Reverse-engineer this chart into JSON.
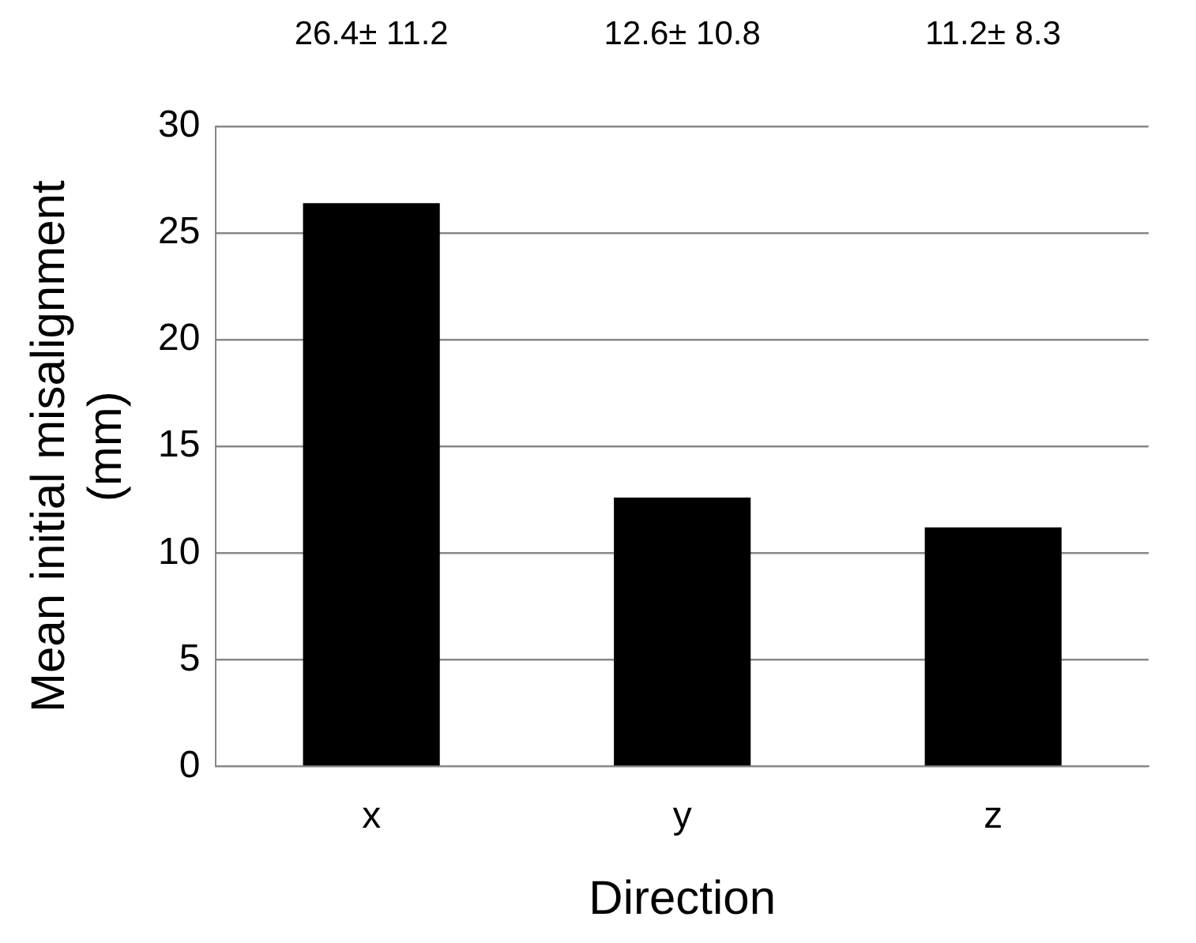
{
  "chart_data": {
    "type": "bar",
    "xlabel": "Direction",
    "ylabel": "Mean initial misalignment\n(mm)",
    "categories": [
      "x",
      "y",
      "z"
    ],
    "values": [
      26.4,
      12.6,
      11.2
    ],
    "color": "#000000",
    "value_labels": [
      "26.4± 11.2",
      "12.6± 10.8",
      "11.2± 8.3"
    ],
    "ylim": [
      0,
      30
    ],
    "yticks": [
      0,
      5,
      10,
      15,
      20,
      25,
      30
    ],
    "grid": "y",
    "legend": false
  }
}
